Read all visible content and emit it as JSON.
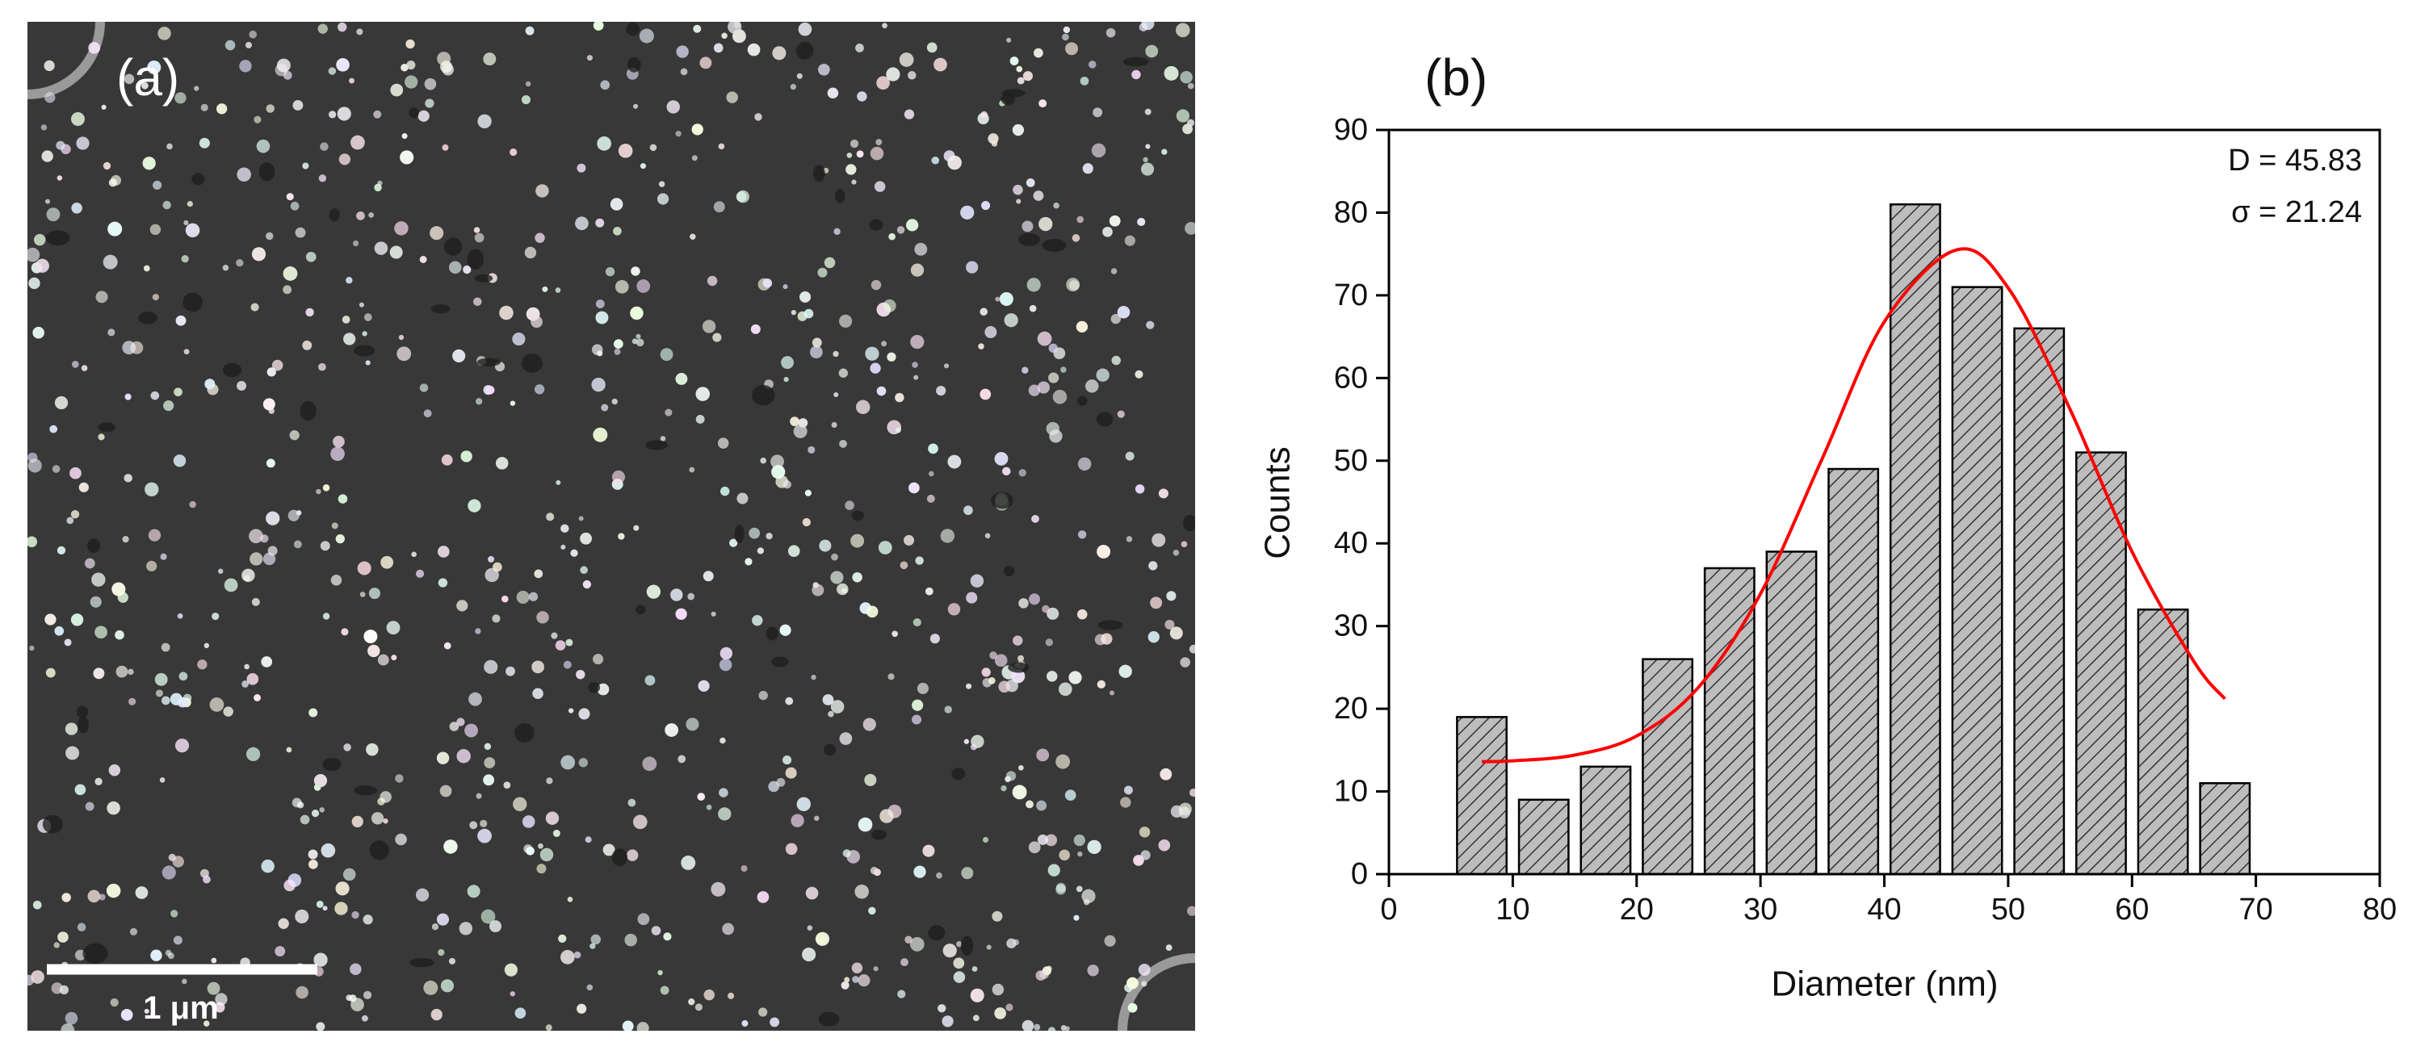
{
  "panel_a": {
    "label": "(a)",
    "scale_bar": "1 μm"
  },
  "chart_data": {
    "type": "histogram",
    "panel_label": "(b)",
    "xlabel": "Diameter (nm)",
    "ylabel": "Counts",
    "annotations": [
      "D = 45.83",
      "σ = 21.24"
    ],
    "bins": [
      5,
      10,
      15,
      20,
      25,
      30,
      35,
      40,
      45,
      50,
      55,
      60,
      65,
      70
    ],
    "values": [
      19,
      9,
      13,
      26,
      37,
      39,
      49,
      81,
      71,
      66,
      51,
      32,
      11
    ],
    "color": "#bdbdbd",
    "xlim": [
      0,
      80
    ],
    "ylim": [
      0,
      90
    ],
    "xticks": [
      0,
      10,
      20,
      30,
      40,
      50,
      60,
      70,
      80
    ],
    "yticks": [
      0,
      10,
      20,
      30,
      40,
      50,
      60,
      70,
      80,
      90
    ],
    "fit": {
      "type": "line",
      "color": "#ff0000",
      "x": [
        7.5,
        10,
        15,
        20,
        25,
        30,
        35,
        40,
        45.83,
        50,
        55,
        60,
        65,
        67.5
      ],
      "values": [
        13.6,
        13.7,
        14.4,
        16.7,
        22.6,
        33.9,
        50.3,
        66.8,
        75.5,
        70.9,
        56.2,
        39.0,
        25.7,
        21.2
      ]
    }
  }
}
